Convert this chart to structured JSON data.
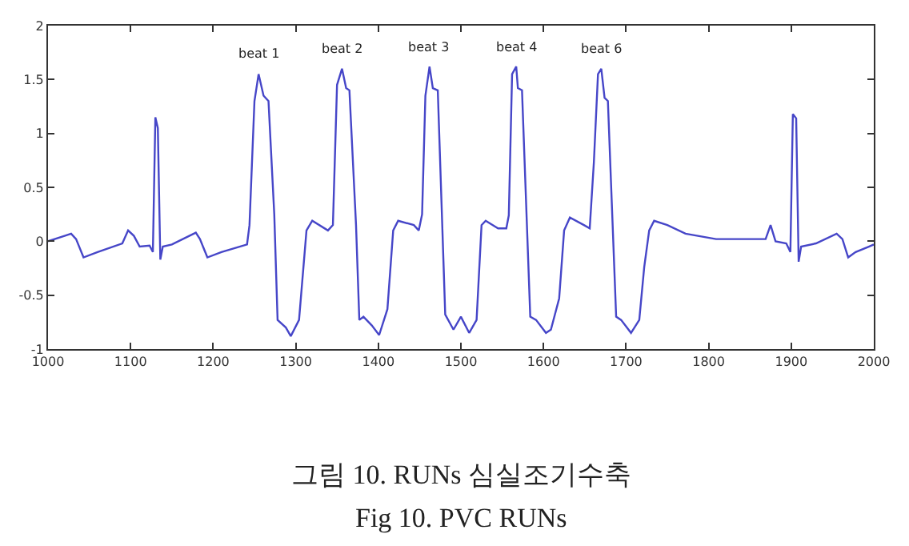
{
  "chart_data": {
    "type": "line",
    "x": [
      1000,
      1020,
      1028,
      1034,
      1043,
      1060,
      1090,
      1097,
      1104,
      1111,
      1123,
      1127,
      1130,
      1133,
      1136,
      1139,
      1150,
      1179,
      1184,
      1193,
      1210,
      1241,
      1244,
      1250,
      1255,
      1261,
      1267,
      1274,
      1278,
      1288,
      1294,
      1304,
      1313,
      1320,
      1339,
      1345,
      1350,
      1356,
      1361,
      1365,
      1373,
      1377,
      1382,
      1392,
      1401,
      1411,
      1418,
      1424,
      1443,
      1449,
      1453,
      1457,
      1462,
      1466,
      1472,
      1481,
      1491,
      1500,
      1510,
      1519,
      1525,
      1530,
      1545,
      1555,
      1558,
      1562,
      1567,
      1569,
      1574,
      1584,
      1591,
      1603,
      1609,
      1619,
      1625,
      1632,
      1649,
      1656,
      1661,
      1666,
      1670,
      1674,
      1678,
      1688,
      1694,
      1706,
      1716,
      1722,
      1728,
      1734,
      1750,
      1772,
      1809,
      1869,
      1875,
      1881,
      1894,
      1899,
      1902,
      1906,
      1909,
      1912,
      1930,
      1955,
      1962,
      1969,
      1978,
      1994,
      2000
    ],
    "series": [
      {
        "color": "#4646c8",
        "values": [
          0.0,
          0.05,
          0.07,
          0.02,
          -0.15,
          -0.1,
          -0.02,
          0.1,
          0.05,
          -0.05,
          -0.04,
          -0.1,
          1.15,
          1.05,
          -0.17,
          -0.05,
          -0.03,
          0.08,
          0.02,
          -0.15,
          -0.1,
          -0.03,
          0.15,
          1.3,
          1.55,
          1.35,
          1.3,
          0.25,
          -0.73,
          -0.8,
          -0.88,
          -0.73,
          0.1,
          0.19,
          0.1,
          0.15,
          1.45,
          1.6,
          1.42,
          1.4,
          0.15,
          -0.73,
          -0.7,
          -0.78,
          -0.87,
          -0.63,
          0.1,
          0.19,
          0.15,
          0.1,
          0.25,
          1.35,
          1.62,
          1.42,
          1.4,
          -0.68,
          -0.82,
          -0.7,
          -0.85,
          -0.73,
          0.15,
          0.19,
          0.12,
          0.12,
          0.24,
          1.55,
          1.62,
          1.42,
          1.4,
          -0.7,
          -0.73,
          -0.85,
          -0.82,
          -0.53,
          0.1,
          0.22,
          0.15,
          0.12,
          0.73,
          1.55,
          1.6,
          1.33,
          1.3,
          -0.7,
          -0.73,
          -0.85,
          -0.73,
          -0.24,
          0.1,
          0.19,
          0.15,
          0.07,
          0.02,
          0.02,
          0.15,
          0.0,
          -0.02,
          -0.1,
          1.18,
          1.14,
          -0.19,
          -0.05,
          -0.02,
          0.07,
          0.02,
          -0.15,
          -0.1,
          -0.05,
          -0.03
        ]
      }
    ],
    "xlim": [
      1000,
      2000
    ],
    "xticks": [
      1000,
      1100,
      1200,
      1300,
      1400,
      1500,
      1600,
      1700,
      1800,
      1900,
      2000
    ],
    "ylim": [
      -1,
      2
    ],
    "yticks": [
      -1,
      -0.5,
      0,
      0.5,
      1,
      1.5,
      2
    ],
    "marker": "none",
    "line_style": "solid",
    "annotations": [
      {
        "text": "beat 1",
        "x": 1255,
        "y": 1.55
      },
      {
        "text": "beat 2",
        "x": 1356,
        "y": 1.6
      },
      {
        "text": "beat 3",
        "x": 1462,
        "y": 1.62
      },
      {
        "text": "beat 4",
        "x": 1567,
        "y": 1.62
      },
      {
        "text": "beat 6",
        "x": 1670,
        "y": 1.6
      },
      "그림 10. RUNs 심실조기수축",
      "Fig 10. PVC RUNs"
    ]
  }
}
